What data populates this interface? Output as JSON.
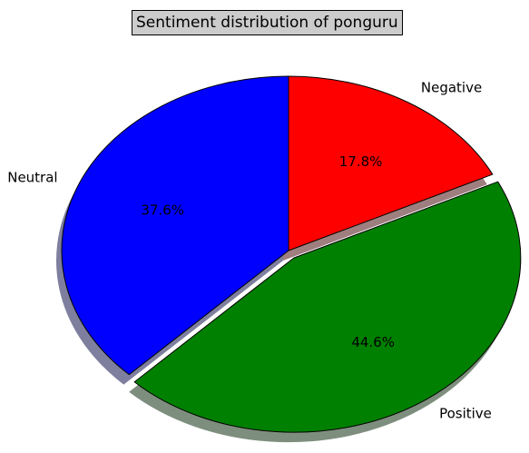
{
  "chart_data": {
    "type": "pie",
    "title": "Sentiment distribution of ponguru",
    "categories": [
      "Negative",
      "Positive",
      "Neutral"
    ],
    "values": [
      17.8,
      44.6,
      37.6
    ],
    "value_labels": [
      "17.8%",
      "44.6%",
      "37.6%"
    ],
    "colors": [
      "#ff0000",
      "#008000",
      "#0000ff"
    ],
    "exploded": [
      false,
      true,
      false
    ],
    "shadow": true,
    "start_angle_deg": 90,
    "direction": "clockwise"
  }
}
